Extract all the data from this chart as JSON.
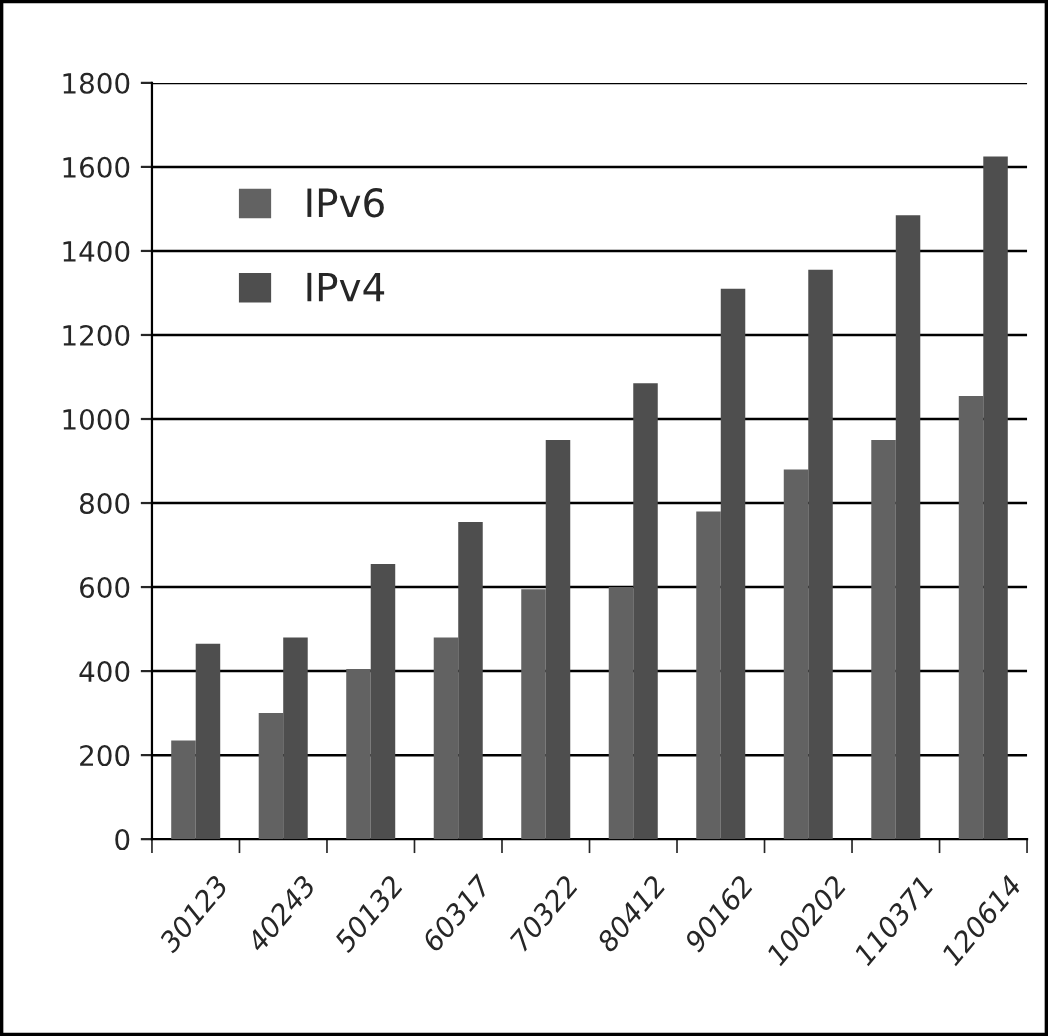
{
  "chart_data": {
    "type": "bar",
    "categories": [
      "30123",
      "40243",
      "50132",
      "60317",
      "70322",
      "80412",
      "90162",
      "100202",
      "110371",
      "120614"
    ],
    "series": [
      {
        "name": "IPv6",
        "color": "#626262",
        "values": [
          235,
          300,
          405,
          480,
          595,
          600,
          780,
          880,
          950,
          1055
        ]
      },
      {
        "name": "IPv4",
        "color": "#4e4e4e",
        "values": [
          465,
          480,
          655,
          755,
          950,
          1085,
          1310,
          1355,
          1485,
          1625
        ]
      }
    ],
    "ylim": [
      0,
      1800
    ],
    "yticks": [
      0,
      200,
      400,
      600,
      800,
      1000,
      1200,
      1400,
      1600,
      1800
    ],
    "grid": "y",
    "legend": "top left"
  }
}
